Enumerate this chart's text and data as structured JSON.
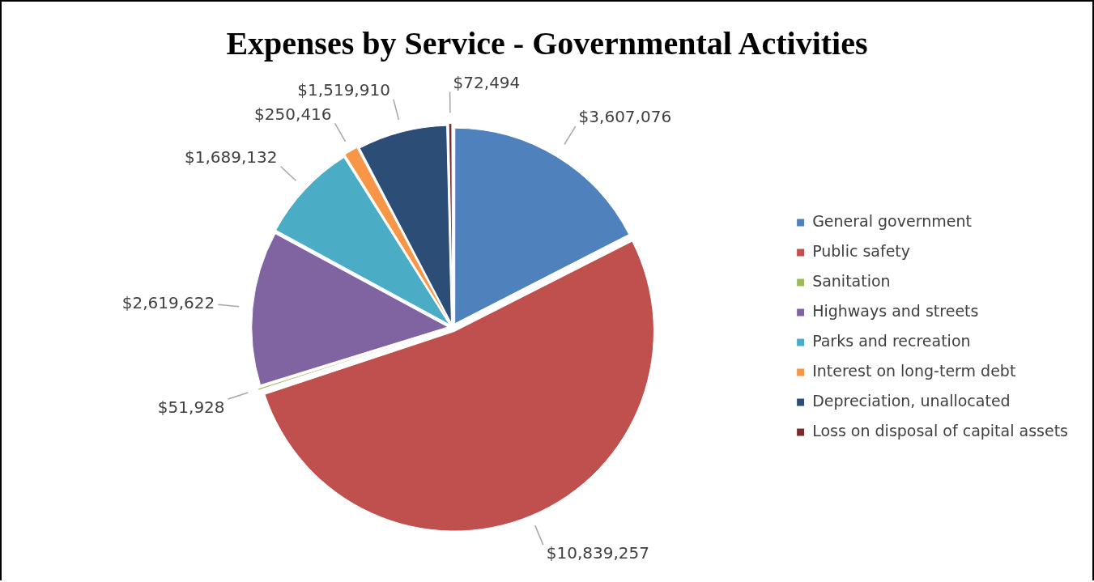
{
  "chart_data": {
    "type": "pie",
    "title": "Expenses by Service - Governmental Activities",
    "categories": [
      "General government",
      "Public safety",
      "Sanitation",
      "Highways and streets",
      "Parks and recreation",
      "Interest on long-term debt",
      "Depreciation, unallocated",
      "Loss on disposal of capital assets"
    ],
    "values": [
      3607076,
      10839257,
      51928,
      2619622,
      1689132,
      250416,
      1519910,
      72494
    ],
    "value_labels": [
      "$3,607,076",
      "$10,839,257",
      "$51,928",
      "$2,619,622",
      "$1,689,132",
      "$250,416",
      "$1,519,910",
      "$72,494"
    ],
    "colors": [
      "#4f81bd",
      "#c0504d",
      "#9bbb59",
      "#8064a2",
      "#4bacc6",
      "#f79646",
      "#2c4d75",
      "#772c2a"
    ],
    "legend": "right"
  }
}
